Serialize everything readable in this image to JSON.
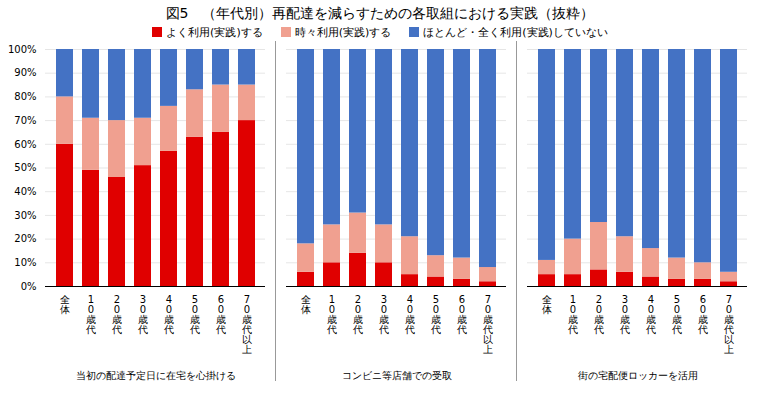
{
  "chart_data": [
    {
      "type": "bar",
      "stacked": true,
      "grid": true,
      "legend": "top",
      "title": "図5　（年代別）再配達を減らすための各取組における実践（抜粋）",
      "xlabel": "当初の配達予定日に在宅を心掛ける",
      "categories": [
        "全体",
        "10歳代",
        "20歳代",
        "30歳代",
        "40歳代",
        "50歳代",
        "60歳代",
        "70歳代以上"
      ],
      "series": [
        {
          "name": "よく利用(実践)する",
          "color": "#e00000",
          "values": [
            60,
            49,
            46,
            51,
            57,
            63,
            65,
            70
          ]
        },
        {
          "name": "時々利用(実践)する",
          "color": "#f0a090",
          "values": [
            20,
            22,
            24,
            20,
            19,
            20,
            20,
            15
          ]
        },
        {
          "name": "ほとんど・全く利用(実践)していない",
          "color": "#4472c4",
          "values": [
            20,
            29,
            30,
            29,
            24,
            17,
            15,
            15
          ]
        }
      ],
      "ylim": [
        0,
        100
      ],
      "yticks": [
        {
          "value": 0,
          "label": "0%"
        },
        {
          "value": 10,
          "label": "10%"
        },
        {
          "value": 20,
          "label": "20%"
        },
        {
          "value": 30,
          "label": "30%"
        },
        {
          "value": 40,
          "label": "40%"
        },
        {
          "value": 50,
          "label": "50%"
        },
        {
          "value": 60,
          "label": "60%"
        },
        {
          "value": 70,
          "label": "70%"
        },
        {
          "value": 80,
          "label": "80%"
        },
        {
          "value": 90,
          "label": "90%"
        },
        {
          "value": 100,
          "label": "100%"
        }
      ]
    },
    {
      "type": "bar",
      "stacked": true,
      "grid": true,
      "tick_labels": "x",
      "xlabel": "コンビニ等店舗での受取",
      "categories": [
        "全体",
        "10歳代",
        "20歳代",
        "30歳代",
        "40歳代",
        "50歳代",
        "60歳代",
        "70歳代以上"
      ],
      "series": [
        {
          "name": "よく利用(実践)する",
          "color": "#e00000",
          "values": [
            6,
            10,
            14,
            10,
            5,
            4,
            3,
            2
          ]
        },
        {
          "name": "時々利用(実践)する",
          "color": "#f0a090",
          "values": [
            12,
            16,
            17,
            16,
            16,
            9,
            9,
            6
          ]
        },
        {
          "name": "ほとんど・全く利用(実践)していない",
          "color": "#4472c4",
          "values": [
            82,
            74,
            69,
            74,
            79,
            87,
            88,
            92
          ]
        }
      ],
      "ylim": [
        0,
        100
      ],
      "yticks": [
        0,
        10,
        20,
        30,
        40,
        50,
        60,
        70,
        80,
        90,
        100
      ]
    },
    {
      "type": "bar",
      "stacked": true,
      "grid": true,
      "tick_labels": "x",
      "xlabel": "街の宅配便ロッカーを活用",
      "categories": [
        "全体",
        "10歳代",
        "20歳代",
        "30歳代",
        "40歳代",
        "50歳代",
        "60歳代",
        "70歳代以上"
      ],
      "series": [
        {
          "name": "よく利用(実践)する",
          "color": "#e00000",
          "values": [
            5,
            5,
            7,
            6,
            4,
            3,
            3,
            2
          ]
        },
        {
          "name": "時々利用(実践)する",
          "color": "#f0a090",
          "values": [
            6,
            15,
            20,
            15,
            12,
            9,
            7,
            4
          ]
        },
        {
          "name": "ほとんど・全く利用(実践)していない",
          "color": "#4472c4",
          "values": [
            89,
            80,
            73,
            79,
            84,
            88,
            90,
            94
          ]
        }
      ],
      "ylim": [
        0,
        100
      ],
      "yticks": [
        0,
        10,
        20,
        30,
        40,
        50,
        60,
        70,
        80,
        90,
        100
      ]
    }
  ]
}
